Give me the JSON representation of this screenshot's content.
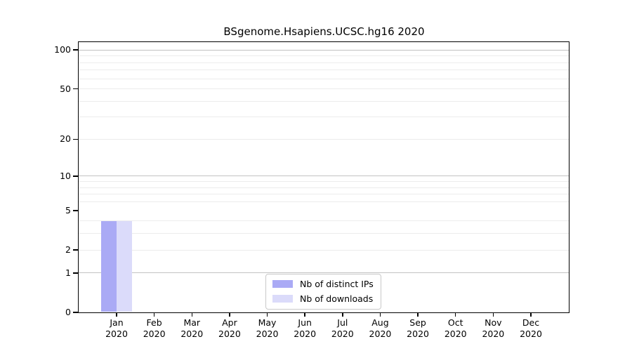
{
  "chart_data": {
    "type": "bar",
    "title": "BSgenome.Hsapiens.UCSC.hg16 2020",
    "categories": [
      {
        "label": "Jan",
        "sublabel": "2020"
      },
      {
        "label": "Feb",
        "sublabel": "2020"
      },
      {
        "label": "Mar",
        "sublabel": "2020"
      },
      {
        "label": "Apr",
        "sublabel": "2020"
      },
      {
        "label": "May",
        "sublabel": "2020"
      },
      {
        "label": "Jun",
        "sublabel": "2020"
      },
      {
        "label": "Jul",
        "sublabel": "2020"
      },
      {
        "label": "Aug",
        "sublabel": "2020"
      },
      {
        "label": "Sep",
        "sublabel": "2020"
      },
      {
        "label": "Oct",
        "sublabel": "2020"
      },
      {
        "label": "Nov",
        "sublabel": "2020"
      },
      {
        "label": "Dec",
        "sublabel": "2020"
      }
    ],
    "series": [
      {
        "name": "Nb of distinct IPs",
        "color": "#aaaaf5",
        "values": [
          4,
          0,
          0,
          0,
          0,
          0,
          0,
          0,
          0,
          0,
          0,
          0
        ]
      },
      {
        "name": "Nb of downloads",
        "color": "#dbdbfa",
        "values": [
          4,
          0,
          0,
          0,
          0,
          0,
          0,
          0,
          0,
          0,
          0,
          0
        ]
      }
    ],
    "xlabel": "",
    "ylabel": "",
    "yscale": "log1p",
    "ylim": [
      0,
      116
    ],
    "yticks": [
      0,
      1,
      2,
      5,
      10,
      20,
      50,
      100
    ],
    "decade_gridlines": [
      1,
      10,
      100
    ],
    "minor_gridlines": [
      2,
      3,
      4,
      6,
      7,
      8,
      9,
      20,
      30,
      40,
      50,
      60,
      70,
      80,
      90
    ],
    "grid": true,
    "legend_position": "lower center",
    "frame_color": "#000000",
    "major_grid_color": "#c2c2c2",
    "minor_grid_color": "#ececec"
  }
}
